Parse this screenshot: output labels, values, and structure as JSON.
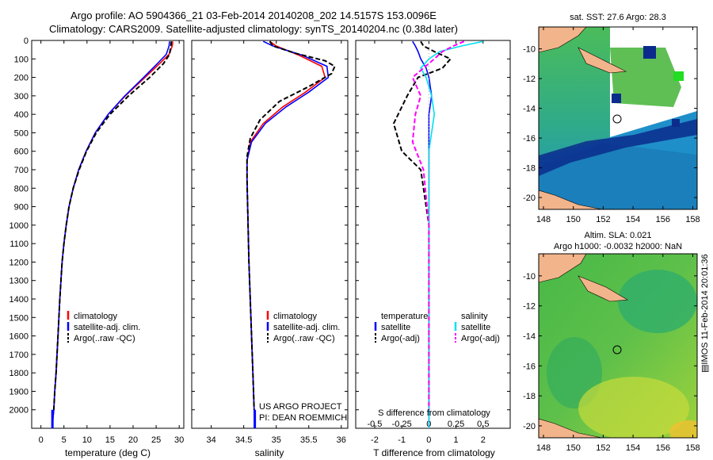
{
  "header": {
    "title_line1": "Argo profile: AO 5904366_21 03-Feb-2014 20140208_202 14.5157S 153.0096E",
    "title_line2": "Climatology: CARS2009. Satellite-adjusted climatology: synTS_20140204.nc (0.38d later)"
  },
  "maps": {
    "sst_title": "sat. SST: 27.6 Argo: 28.3",
    "sla_title1": "Altim. SLA: 0.021",
    "sla_title2": "Argo h1000: -0.0032 h2000: NaN",
    "lat_ticks": [
      "-10",
      "-12",
      "-14",
      "-16",
      "-18",
      "-20"
    ],
    "lon_ticks": [
      "148",
      "150",
      "152",
      "154",
      "156",
      "158"
    ]
  },
  "footer": {
    "credit": "IMOS 11-Feb-2014 20:01:36",
    "project_line1": "US ARGO PROJECT",
    "project_line2": "PI: DEAN ROEMMICH"
  },
  "colors": {
    "clim": "#ff0000",
    "sat": "#0000ff",
    "argo": "#000000",
    "s_sat": "#00e0f0",
    "s_argo": "#ff00ff"
  },
  "chart_data": [
    {
      "type": "line",
      "xlabel": "temperature (deg C)",
      "ylabel": "",
      "xlim": [
        -2,
        31
      ],
      "ylim": [
        0,
        2100
      ],
      "xticks": [
        0,
        5,
        10,
        15,
        20,
        25,
        30
      ],
      "yticks": [
        0,
        100,
        200,
        300,
        400,
        500,
        600,
        700,
        800,
        900,
        1000,
        1100,
        1200,
        1300,
        1400,
        1500,
        1600,
        1700,
        1800,
        1900,
        2000
      ],
      "legend": [
        "climatology",
        "satellite-adj. clim.",
        "Argo(..raw -QC)"
      ],
      "series": [
        {
          "name": "climatology",
          "style": "solid",
          "color": "#ff0000",
          "x": [
            28.6,
            28.5,
            27.8,
            25.8,
            22.6,
            18.3,
            14.6,
            11.8,
            9.8,
            8.2,
            7.0,
            6.1,
            5.5,
            5.0,
            4.6,
            4.1,
            3.7,
            3.3,
            3.0,
            2.8,
            2.6,
            2.5
          ],
          "y": [
            5,
            30,
            75,
            125,
            200,
            300,
            400,
            500,
            600,
            700,
            800,
            900,
            1000,
            1100,
            1200,
            1400,
            1600,
            1800,
            1900,
            2000,
            2050,
            2100
          ]
        },
        {
          "name": "satellite-adj. clim.",
          "style": "solid",
          "color": "#0000ff",
          "x": [
            27.9,
            27.8,
            27.2,
            25.3,
            22.3,
            18.2,
            14.6,
            11.8,
            9.8,
            8.2,
            7.0,
            6.1,
            5.5,
            5.0,
            4.6,
            4.1,
            3.7,
            3.3,
            3.0,
            2.8,
            2.6,
            2.5
          ],
          "y": [
            5,
            30,
            75,
            125,
            200,
            300,
            400,
            500,
            600,
            700,
            800,
            900,
            1000,
            1100,
            1200,
            1400,
            1600,
            1800,
            1900,
            2000,
            2050,
            2100
          ]
        },
        {
          "name": "Argo(..raw -QC)",
          "style": "dashed",
          "color": "#000000",
          "x": [
            28.3,
            28.2,
            27.9,
            26.6,
            23.6,
            19.0,
            15.0,
            12.0,
            9.9,
            8.3,
            7.0,
            6.1,
            5.5,
            5.0,
            4.6,
            4.1,
            3.7,
            3.3,
            3.0,
            2.8
          ],
          "y": [
            5,
            30,
            75,
            125,
            200,
            300,
            400,
            500,
            600,
            700,
            800,
            900,
            1000,
            1100,
            1200,
            1400,
            1600,
            1800,
            1900,
            2000
          ]
        }
      ]
    },
    {
      "type": "line",
      "xlabel": "salinity",
      "ylabel": "",
      "xlim": [
        33.7,
        36.1
      ],
      "ylim": [
        0,
        2100
      ],
      "xticks": [
        34,
        34.5,
        35,
        35.5,
        36
      ],
      "xticklabels": [
        "34",
        "34.5",
        "35",
        "35.5",
        "36"
      ],
      "legend": [
        "climatology",
        "satellite-adj. clim.",
        "Argo(..raw -QC)"
      ],
      "series": [
        {
          "name": "climatology",
          "style": "solid",
          "color": "#ff0000",
          "x": [
            34.9,
            35.0,
            35.35,
            35.7,
            35.75,
            35.45,
            35.1,
            34.8,
            34.6,
            34.55,
            34.55,
            34.56,
            34.58,
            34.61,
            34.64,
            34.66,
            34.67
          ],
          "y": [
            5,
            30,
            80,
            140,
            200,
            280,
            360,
            450,
            550,
            650,
            750,
            900,
            1200,
            1500,
            1800,
            2000,
            2100
          ]
        },
        {
          "name": "satellite-adj. clim.",
          "style": "solid",
          "color": "#0000ff",
          "x": [
            34.8,
            34.95,
            35.4,
            35.78,
            35.8,
            35.5,
            35.15,
            34.83,
            34.62,
            34.55,
            34.55,
            34.56,
            34.58,
            34.61,
            34.64,
            34.66,
            34.67
          ],
          "y": [
            5,
            30,
            80,
            140,
            200,
            280,
            360,
            450,
            550,
            650,
            750,
            900,
            1200,
            1500,
            1800,
            2000,
            2100
          ]
        },
        {
          "name": "Argo(..raw -QC)",
          "style": "dashed",
          "color": "#000000",
          "x": [
            34.9,
            34.95,
            35.3,
            35.75,
            35.9,
            35.85,
            35.5,
            35.05,
            34.75,
            34.6,
            34.55,
            34.55,
            34.56,
            34.58,
            34.61,
            34.64,
            34.66
          ],
          "y": [
            5,
            30,
            70,
            110,
            140,
            180,
            250,
            330,
            430,
            530,
            630,
            750,
            900,
            1200,
            1500,
            1800,
            2000
          ]
        }
      ]
    },
    {
      "type": "line",
      "xlabel": "T difference from climatology",
      "xlabel_top": "S difference from climatology",
      "xlim": [
        -2.7,
        3
      ],
      "ylim": [
        0,
        2100
      ],
      "xticks": [
        -2,
        -1,
        0,
        1,
        2
      ],
      "xticks_s": [
        "-0.5",
        "-0.25",
        "0",
        "0.25",
        "0.5"
      ],
      "legend_temperature": [
        "temperature",
        "satellite",
        "Argo(-adj)"
      ],
      "legend_salinity": [
        "salinity",
        "satellite",
        "Argo(-adj)"
      ],
      "series": [
        {
          "name": "T satellite",
          "style": "solid",
          "color": "#0000ff",
          "x": [
            -0.6,
            -0.5,
            -0.4,
            -0.3,
            -0.1,
            0.0,
            0.05,
            0.1,
            0.05,
            0.0,
            0.0,
            0.0
          ],
          "y": [
            5,
            30,
            60,
            100,
            150,
            200,
            250,
            300,
            350,
            400,
            800,
            2100
          ]
        },
        {
          "name": "T Argo(-adj)",
          "style": "dashed",
          "color": "#000000",
          "x": [
            -0.3,
            -0.2,
            0.2,
            0.8,
            0.5,
            -0.4,
            -0.8,
            -1.3,
            -1.0,
            -0.3,
            0.0,
            0.0
          ],
          "y": [
            5,
            30,
            60,
            100,
            150,
            200,
            300,
            450,
            600,
            700,
            1000,
            2000
          ]
        },
        {
          "name": "S satellite",
          "style": "solid",
          "color": "#00e0f0",
          "x": [
            2.0,
            1.2,
            0.4,
            0.0,
            -0.3,
            -0.1,
            0.1,
            0.2,
            0.0,
            0.0,
            0.0
          ],
          "y": [
            5,
            30,
            60,
            100,
            150,
            200,
            300,
            400,
            600,
            1000,
            2100
          ]
        },
        {
          "name": "S Argo(-adj)",
          "style": "dashed",
          "color": "#ff00ff",
          "x": [
            1.3,
            0.9,
            0.5,
            0.2,
            -0.2,
            -0.6,
            -0.3,
            -0.5,
            -0.6,
            -0.2,
            0.0,
            0.0
          ],
          "y": [
            5,
            30,
            60,
            100,
            150,
            200,
            300,
            400,
            550,
            700,
            1000,
            2000
          ]
        }
      ]
    }
  ]
}
